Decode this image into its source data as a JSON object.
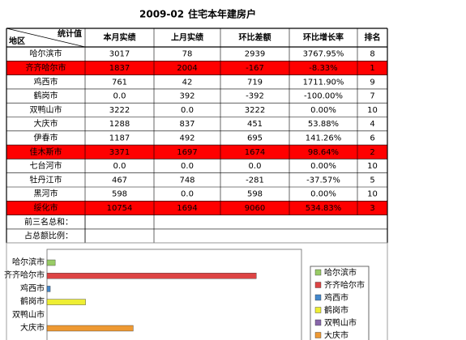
{
  "title": {
    "period": "2009-02",
    "name": "住宅本年建房户"
  },
  "table": {
    "corner": {
      "top": "统计值",
      "bottom": "地区"
    },
    "columns": [
      "本月实绩",
      "上月实绩",
      "环比差额",
      "环比增长率",
      "排名"
    ],
    "rows": [
      [
        "哈尔滨市",
        "3017",
        "78",
        "2939",
        "3767.95%",
        "8"
      ],
      [
        "齐齐哈尔市",
        "1837",
        "2004",
        "-167",
        "-8.33%",
        "1"
      ],
      [
        "鸡西市",
        "761",
        "42",
        "719",
        "1711.90%",
        "9"
      ],
      [
        "鹤岗市",
        "0.0",
        "392",
        "-392",
        "-100.00%",
        "7"
      ],
      [
        "双鸭山市",
        "3222",
        "0.0",
        "3222",
        "0.00%",
        "10"
      ],
      [
        "大庆市",
        "1288",
        "837",
        "451",
        "53.88%",
        "4"
      ],
      [
        "伊春市",
        "1187",
        "492",
        "695",
        "141.26%",
        "6"
      ],
      [
        "佳木斯市",
        "3371",
        "1697",
        "1674",
        "98.64%",
        "2"
      ],
      [
        "七台河市",
        "0.0",
        "0.0",
        "0.0",
        "0.00%",
        "10"
      ],
      [
        "牡丹江市",
        "467",
        "748",
        "-281",
        "-37.57%",
        "5"
      ],
      [
        "黑河市",
        "598",
        "0.0",
        "598",
        "0.00%",
        "10"
      ],
      [
        "绥化市",
        "10754",
        "1694",
        "9060",
        "534.83%",
        "3"
      ]
    ],
    "highlight_rows": [
      1,
      7,
      11
    ],
    "highlight_color": "#ff0000",
    "footer_rows": [
      "前三名总和：",
      "占总额比例："
    ]
  },
  "chart": {
    "type": "bar",
    "categories": [
      "哈尔滨市",
      "齐齐哈尔市",
      "鸡西市",
      "鹤岗市",
      "双鸭山市",
      "大庆市"
    ],
    "values": [
      10,
      255,
      4,
      47,
      0,
      105
    ],
    "colors": [
      "#99cc66",
      "#dd4444",
      "#4488cc",
      "#eeee33",
      "#8866aa",
      "#ee9933"
    ],
    "xlim": [
      0,
      310
    ]
  }
}
